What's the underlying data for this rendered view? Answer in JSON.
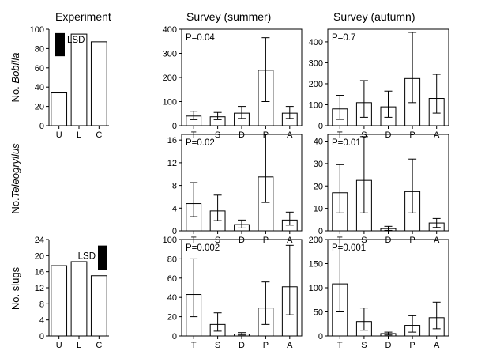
{
  "column_titles": [
    "Experiment",
    "Survey (summer)",
    "Survey (autumn)"
  ],
  "row_labels": [
    {
      "prefix": "No. ",
      "italic": "Bobilla"
    },
    {
      "prefix": "No.",
      "italic": "Teleogryllus"
    },
    {
      "prefix": "No. slugs",
      "italic": ""
    }
  ],
  "chart_data": [
    {
      "type": "bar",
      "panel": "experiment-bobilla",
      "row": 0,
      "col": 0,
      "categories": [
        "U",
        "L",
        "C"
      ],
      "values": [
        34,
        95,
        87
      ],
      "ylim": [
        0,
        100
      ],
      "yticks": [
        0,
        20,
        40,
        60,
        80,
        100
      ],
      "lsd": {
        "label": "LSD",
        "from": 72,
        "to": 96,
        "side": "left"
      }
    },
    {
      "type": "bar",
      "panel": "summer-bobilla",
      "row": 0,
      "col": 1,
      "categories": [
        "T",
        "S",
        "D",
        "P",
        "A"
      ],
      "values": [
        40,
        37,
        52,
        230,
        52
      ],
      "err_low": [
        25,
        25,
        30,
        100,
        30
      ],
      "err_high": [
        60,
        55,
        80,
        365,
        80
      ],
      "ylim": [
        0,
        400
      ],
      "yticks": [
        0,
        100,
        200,
        300,
        400
      ],
      "annotation": "P=0.04"
    },
    {
      "type": "bar",
      "panel": "autumn-bobilla",
      "row": 0,
      "col": 2,
      "categories": [
        "T",
        "S",
        "D",
        "P",
        "A"
      ],
      "values": [
        80,
        110,
        90,
        225,
        130
      ],
      "err_low": [
        30,
        40,
        40,
        110,
        60
      ],
      "err_high": [
        145,
        215,
        165,
        445,
        245
      ],
      "ylim": [
        0,
        460
      ],
      "yticks": [
        0,
        100,
        200,
        300,
        400
      ],
      "annotation": "P=0.7"
    },
    {
      "type": "bar",
      "panel": "summer-teleogryllus",
      "row": 1,
      "col": 1,
      "categories": [
        "T",
        "S",
        "D",
        "P",
        "A"
      ],
      "values": [
        4.8,
        3.5,
        1.1,
        9.5,
        1.9
      ],
      "err_low": [
        2.5,
        1.8,
        0.5,
        5.0,
        1.0
      ],
      "err_high": [
        8.5,
        6.3,
        1.9,
        17.0,
        3.3
      ],
      "ylim": [
        0,
        17
      ],
      "yticks": [
        0,
        4,
        8,
        12,
        16
      ],
      "annotation": "P=0.02"
    },
    {
      "type": "bar",
      "panel": "autumn-teleogryllus",
      "row": 1,
      "col": 2,
      "categories": [
        "T",
        "S",
        "D",
        "P",
        "A"
      ],
      "values": [
        17,
        22.5,
        1,
        17.5,
        3.5
      ],
      "err_low": [
        8,
        8,
        0.2,
        8,
        1.5
      ],
      "err_high": [
        29.5,
        42,
        2,
        32,
        5.5
      ],
      "ylim": [
        0,
        43
      ],
      "yticks": [
        0,
        10,
        20,
        30,
        40
      ],
      "annotation": "P=0.01"
    },
    {
      "type": "bar",
      "panel": "experiment-slugs",
      "row": 2,
      "col": 0,
      "categories": [
        "U",
        "L",
        "C"
      ],
      "values": [
        17.5,
        18.5,
        15
      ],
      "ylim": [
        0,
        24
      ],
      "yticks": [
        0,
        4,
        8,
        12,
        16,
        20,
        24
      ],
      "lsd": {
        "label": "LSD",
        "from": 16.5,
        "to": 22.5,
        "side": "right"
      }
    },
    {
      "type": "bar",
      "panel": "summer-slugs",
      "row": 2,
      "col": 1,
      "categories": [
        "T",
        "S",
        "D",
        "P",
        "A"
      ],
      "values": [
        43,
        12,
        2,
        29,
        51
      ],
      "err_low": [
        20,
        5,
        1,
        12,
        22
      ],
      "err_high": [
        80,
        24,
        3.5,
        56,
        94
      ],
      "ylim": [
        0,
        100
      ],
      "yticks": [
        0,
        20,
        40,
        60,
        80,
        100
      ],
      "annotation": "P=0.002"
    },
    {
      "type": "bar",
      "panel": "autumn-slugs",
      "row": 2,
      "col": 2,
      "categories": [
        "T",
        "S",
        "D",
        "P",
        "A"
      ],
      "values": [
        108,
        30,
        5,
        22,
        38
      ],
      "err_low": [
        50,
        12,
        2,
        8,
        15
      ],
      "err_high": [
        200,
        58,
        8,
        42,
        70
      ],
      "ylim": [
        0,
        200
      ],
      "yticks": [
        0,
        50,
        100,
        150,
        200
      ],
      "annotation": "P=0.001"
    }
  ]
}
